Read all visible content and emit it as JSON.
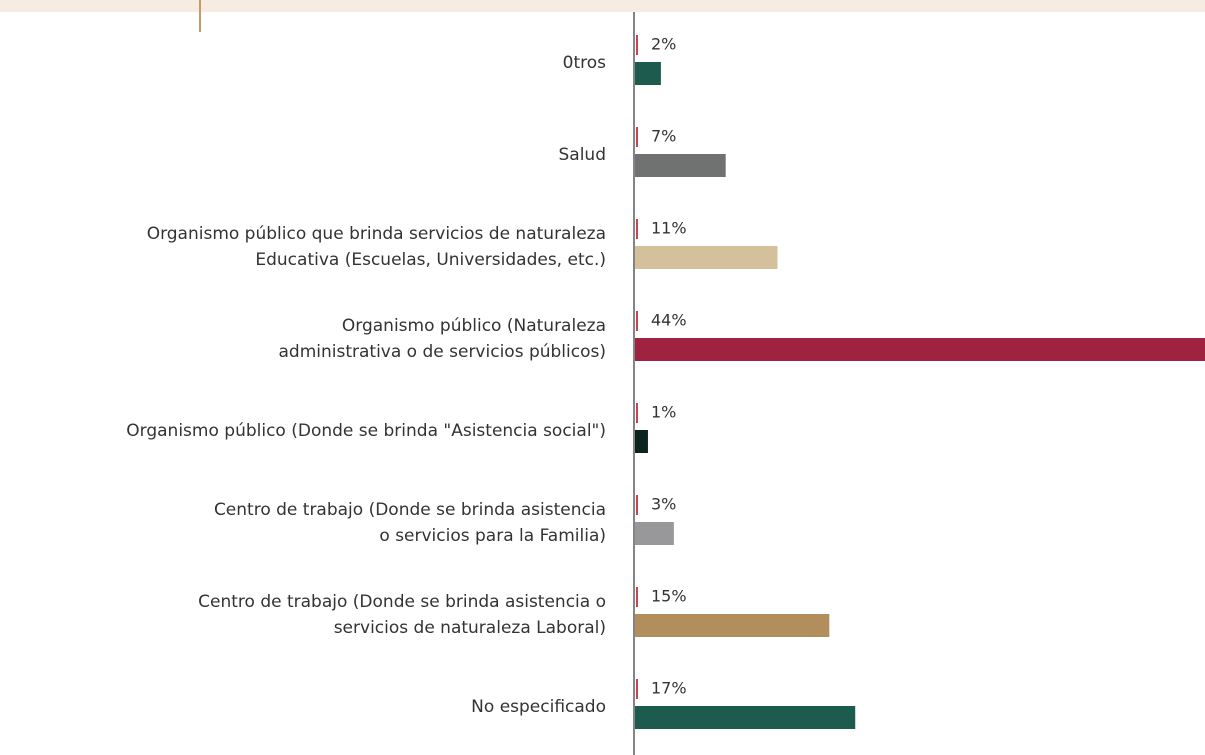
{
  "chart_data": {
    "type": "bar",
    "orientation": "horizontal",
    "categories": [
      [
        "0tros"
      ],
      [
        "Salud"
      ],
      [
        "Organismo público que brinda servicios de naturaleza",
        "Educativa (Escuelas, Universidades, etc.)"
      ],
      [
        "Organismo público (Naturaleza",
        "administrativa o de servicios públicos)"
      ],
      [
        "Organismo público (Donde se brinda \"Asistencia social\")"
      ],
      [
        "Centro de trabajo (Donde se brinda asistencia",
        "o servicios para la Familia)"
      ],
      [
        "Centro de trabajo (Donde se brinda asistencia o",
        "servicios de naturaleza Laboral)"
      ],
      [
        "No especificado"
      ]
    ],
    "values": [
      2,
      7,
      11,
      44,
      1,
      3,
      15,
      17
    ],
    "value_labels": [
      "2%",
      "7%",
      "11%",
      "44%",
      "1%",
      "3%",
      "15%",
      "17%"
    ],
    "colors": [
      "#1e5b4f",
      "#6f7271",
      "#d4c19c",
      "#9f2241",
      "#0c231e",
      "#98989a",
      "#b38e5d",
      "#1e5b4f"
    ],
    "xlim": [
      0,
      44
    ]
  }
}
